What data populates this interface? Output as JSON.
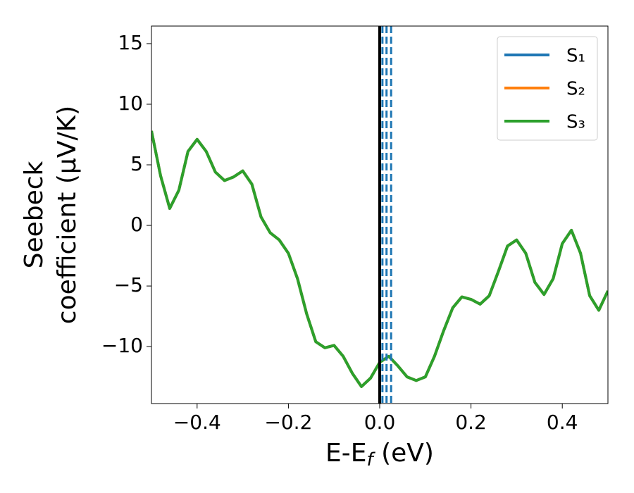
{
  "chart_data": {
    "type": "line",
    "xlabel": [
      "E-E",
      "f",
      " (eV)"
    ],
    "ylabel": [
      "Seebeck",
      "coefficient  (μV/K)"
    ],
    "x": [
      -0.5,
      -0.48,
      -0.46,
      -0.44,
      -0.42,
      -0.4,
      -0.38,
      -0.36,
      -0.34,
      -0.32,
      -0.3,
      -0.28,
      -0.26,
      -0.24,
      -0.22,
      -0.2,
      -0.18,
      -0.16,
      -0.14,
      -0.12,
      -0.1,
      -0.08,
      -0.06,
      -0.04,
      -0.02,
      0,
      0.02,
      0.04,
      0.06,
      0.08,
      0.1,
      0.12,
      0.14,
      0.16,
      0.18,
      0.2,
      0.22,
      0.24,
      0.26,
      0.28,
      0.3,
      0.32,
      0.34,
      0.36,
      0.38,
      0.4,
      0.42,
      0.44,
      0.46,
      0.48,
      0.5
    ],
    "series": [
      {
        "name": "S₁",
        "color": "#1f77b4",
        "values": [
          7.8,
          4.1,
          1.4,
          2.9,
          6.1,
          7.1,
          6.1,
          4.4,
          3.7,
          4.0,
          4.5,
          3.4,
          0.7,
          -0.6,
          -1.2,
          -2.3,
          -4.4,
          -7.3,
          -9.6,
          -10.1,
          -9.9,
          -10.8,
          -12.2,
          -13.3,
          -12.6,
          -11.3,
          -10.8,
          -11.6,
          -12.5,
          -12.8,
          -12.5,
          -10.8,
          -8.7,
          -6.8,
          -5.9,
          -6.1,
          -6.5,
          -5.8,
          -3.8,
          -1.7,
          -1.2,
          -2.3,
          -4.7,
          -5.7,
          -4.4,
          -1.5,
          -0.4,
          -2.3,
          -5.8,
          -7.0,
          -5.4
        ]
      },
      {
        "name": "S₂",
        "color": "#ff7f0e",
        "values": [
          7.8,
          4.1,
          1.4,
          2.9,
          6.1,
          7.1,
          6.1,
          4.4,
          3.7,
          4.0,
          4.5,
          3.4,
          0.7,
          -0.6,
          -1.2,
          -2.3,
          -4.4,
          -7.3,
          -9.6,
          -10.1,
          -9.9,
          -10.8,
          -12.2,
          -13.3,
          -12.6,
          -11.3,
          -10.8,
          -11.6,
          -12.5,
          -12.8,
          -12.5,
          -10.8,
          -8.7,
          -6.8,
          -5.9,
          -6.1,
          -6.5,
          -5.8,
          -3.8,
          -1.7,
          -1.2,
          -2.3,
          -4.7,
          -5.7,
          -4.4,
          -1.5,
          -0.4,
          -2.3,
          -5.8,
          -7.0,
          -5.4
        ]
      },
      {
        "name": "S₃",
        "color": "#2ca02c",
        "values": [
          7.8,
          4.1,
          1.4,
          2.9,
          6.1,
          7.1,
          6.1,
          4.4,
          3.7,
          4.0,
          4.5,
          3.4,
          0.7,
          -0.6,
          -1.2,
          -2.3,
          -4.4,
          -7.3,
          -9.6,
          -10.1,
          -9.9,
          -10.8,
          -12.2,
          -13.3,
          -12.6,
          -11.3,
          -10.8,
          -11.6,
          -12.5,
          -12.8,
          -12.5,
          -10.8,
          -8.7,
          -6.8,
          -5.9,
          -6.1,
          -6.5,
          -5.8,
          -3.8,
          -1.7,
          -1.2,
          -2.3,
          -4.7,
          -5.7,
          -4.4,
          -1.5,
          -0.4,
          -2.3,
          -5.8,
          -7.0,
          -5.4
        ]
      }
    ],
    "vline": {
      "x": 0,
      "color": "#000000"
    },
    "dashed_vlines": {
      "x": [
        0.006,
        0.015,
        0.025
      ],
      "color": "#1f77b4"
    },
    "xlim": [
      -0.5,
      0.5
    ],
    "ylim": [
      -14.7,
      16.45
    ],
    "xticks": [
      {
        "value": -0.4,
        "label": "−0.4"
      },
      {
        "value": -0.2,
        "label": "−0.2"
      },
      {
        "value": 0,
        "label": "0.0"
      },
      0.2,
      0.4
    ],
    "yticks": [
      {
        "value": -10,
        "label": "−10"
      },
      {
        "value": -5,
        "label": "−5"
      },
      0,
      5,
      10,
      15
    ],
    "legend": "upper right"
  }
}
